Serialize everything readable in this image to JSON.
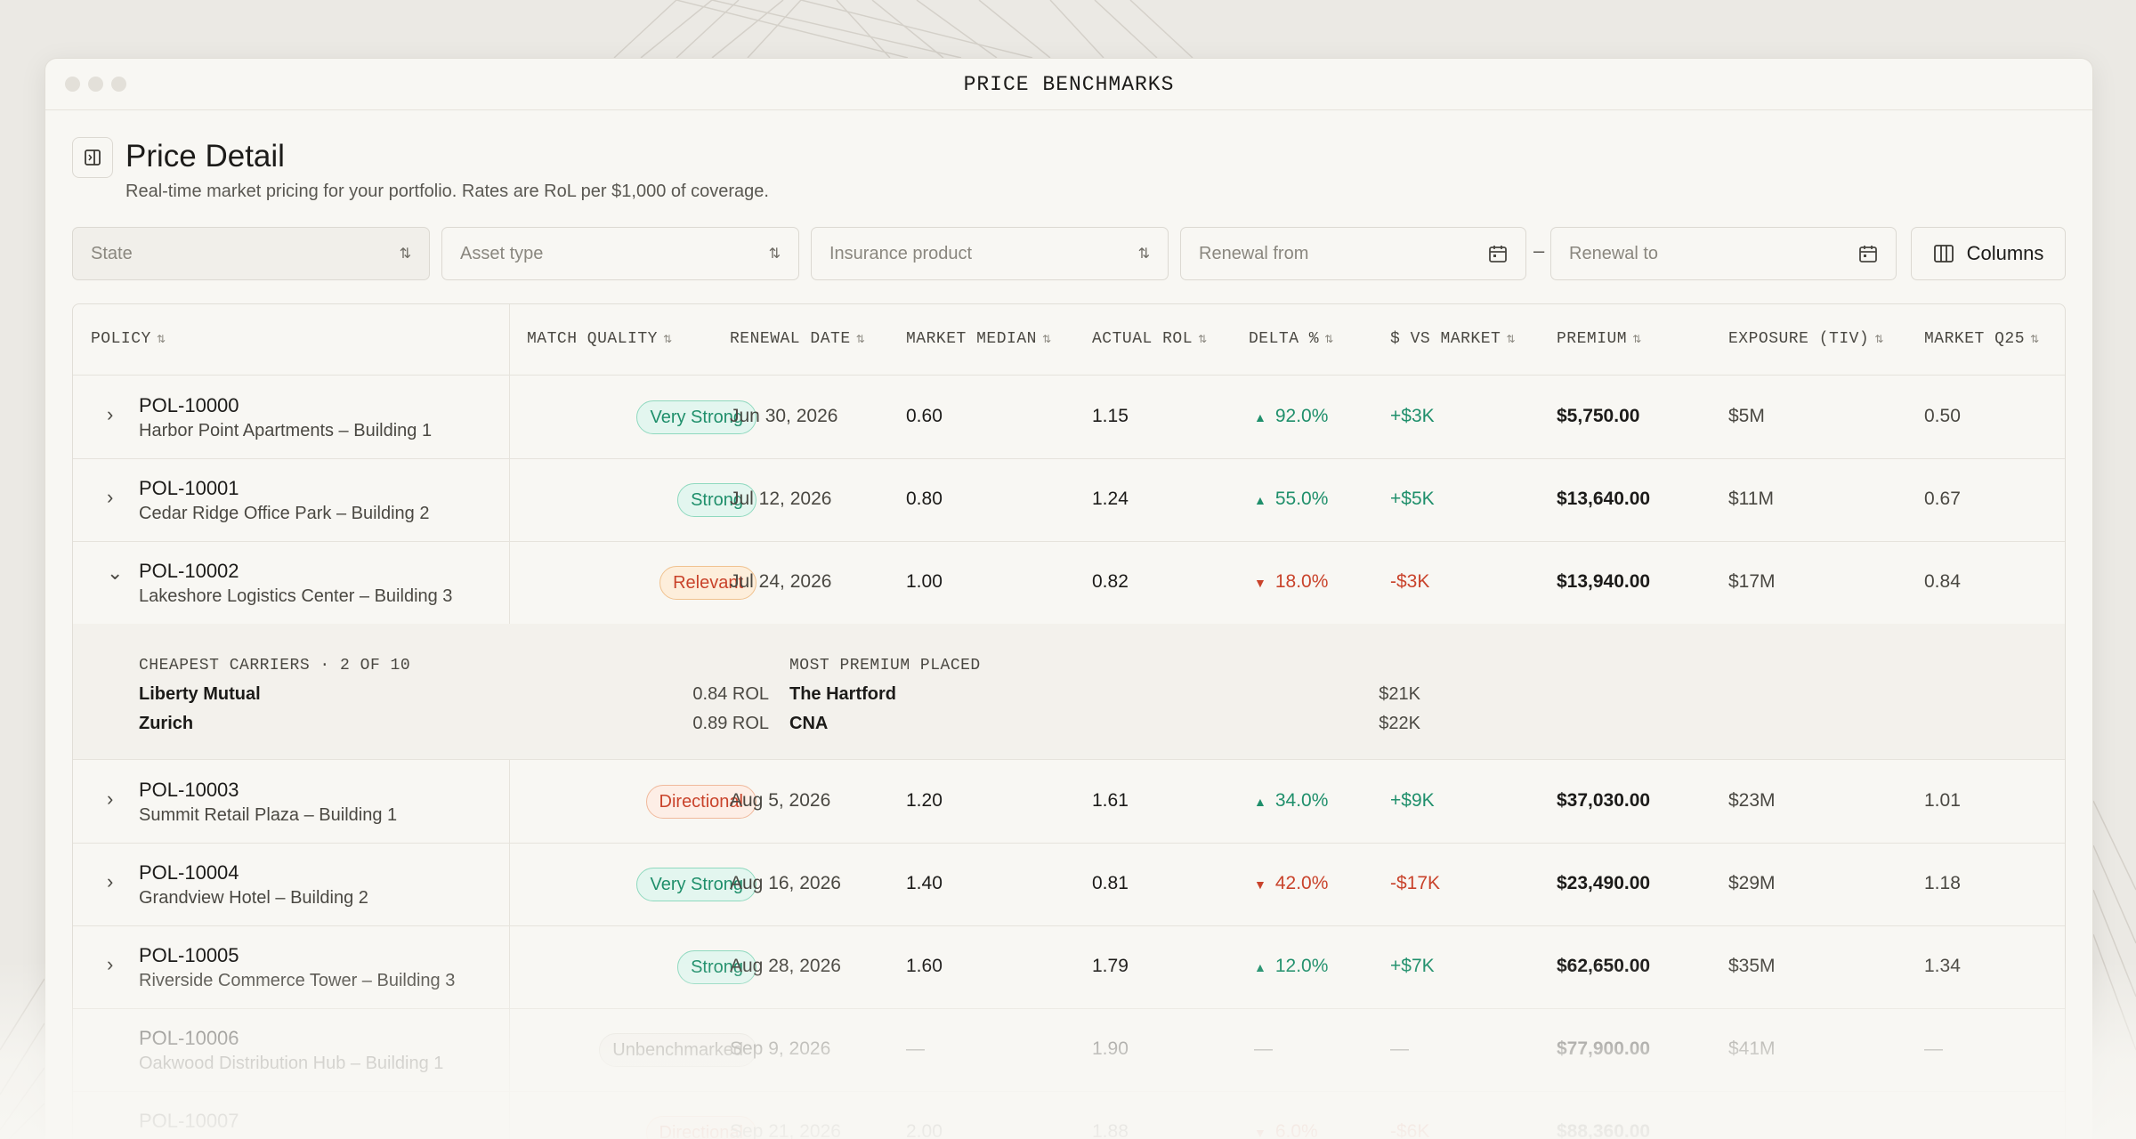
{
  "window": {
    "title": "PRICE BENCHMARKS"
  },
  "header": {
    "title": "Price Detail",
    "subtitle": "Real-time market pricing for your portfolio. Rates are RoL per $1,000 of coverage."
  },
  "filters": {
    "state": "State",
    "asset_type": "Asset type",
    "insurance_product": "Insurance product",
    "renewal_from": "Renewal from",
    "renewal_to": "Renewal to",
    "range_separator": "–",
    "columns_label": "Columns"
  },
  "columns": [
    "POLICY",
    "MATCH QUALITY",
    "RENEWAL DATE",
    "MARKET MEDIAN",
    "ACTUAL ROL",
    "DELTA %",
    "$ VS MARKET",
    "PREMIUM",
    "EXPOSURE (TIV)",
    "MARKET Q25"
  ],
  "rows": [
    {
      "id": "POL-10000",
      "name": "Harbor Point Apartments – Building 1",
      "quality": "Very Strong",
      "date": "Jun 30, 2026",
      "median": "0.60",
      "actual": "1.15",
      "delta": "92.0%",
      "vs": "+$3K",
      "premium": "$5,750.00",
      "tiv": "$5M",
      "q25": "0.50",
      "chevron": "›"
    },
    {
      "id": "POL-10001",
      "name": "Cedar Ridge Office Park – Building 2",
      "quality": "Strong",
      "date": "Jul 12, 2026",
      "median": "0.80",
      "actual": "1.24",
      "delta": "55.0%",
      "vs": "+$5K",
      "premium": "$13,640.00",
      "tiv": "$11M",
      "q25": "0.67",
      "chevron": "›"
    },
    {
      "id": "POL-10002",
      "name": "Lakeshore Logistics Center – Building 3",
      "quality": "Relevant",
      "date": "Jul 24, 2026",
      "median": "1.00",
      "actual": "0.82",
      "delta": "18.0%",
      "vs": "-$3K",
      "premium": "$13,940.00",
      "tiv": "$17M",
      "q25": "0.84",
      "chevron": "⌄"
    },
    {
      "id": "POL-10003",
      "name": "Summit Retail Plaza – Building 1",
      "quality": "Directional",
      "date": "Aug 5, 2026",
      "median": "1.20",
      "actual": "1.61",
      "delta": "34.0%",
      "vs": "+$9K",
      "premium": "$37,030.00",
      "tiv": "$23M",
      "q25": "1.01",
      "chevron": "›"
    },
    {
      "id": "POL-10004",
      "name": "Grandview Hotel – Building 2",
      "quality": "Very Strong",
      "date": "Aug 16, 2026",
      "median": "1.40",
      "actual": "0.81",
      "delta": "42.0%",
      "vs": "-$17K",
      "premium": "$23,490.00",
      "tiv": "$29M",
      "q25": "1.18",
      "chevron": "›"
    },
    {
      "id": "POL-10005",
      "name": "Riverside Commerce Tower – Building 3",
      "quality": "Strong",
      "date": "Aug 28, 2026",
      "median": "1.60",
      "actual": "1.79",
      "delta": "12.0%",
      "vs": "+$7K",
      "premium": "$62,650.00",
      "tiv": "$35M",
      "q25": "1.34",
      "chevron": "›"
    },
    {
      "id": "POL-10006",
      "name": "Oakwood Distribution Hub – Building 1",
      "quality": "Unbenchmarked",
      "date": "Sep 9, 2026",
      "median": "—",
      "actual": "1.90",
      "delta": "—",
      "vs": "—",
      "premium": "$77,900.00",
      "tiv": "$41M",
      "q25": "—"
    },
    {
      "id": "POL-10007",
      "quality": "Directional",
      "date": "Sep 21, 2026",
      "median": "2.00",
      "actual": "1.88",
      "delta": "6.0%",
      "vs": "-$6K",
      "premium": "$88,360.00"
    }
  ],
  "expanded": {
    "cheapest_title": "CHEAPEST CARRIERS · 2 OF 10",
    "premium_title": "MOST PREMIUM PLACED",
    "cheapest": [
      {
        "name": "Liberty Mutual",
        "value": "0.84 ROL"
      },
      {
        "name": "Zurich",
        "value": "0.89 ROL"
      }
    ],
    "premium": [
      {
        "name": "The Hartford",
        "value": "$21K"
      },
      {
        "name": "CNA",
        "value": "$22K"
      }
    ]
  }
}
